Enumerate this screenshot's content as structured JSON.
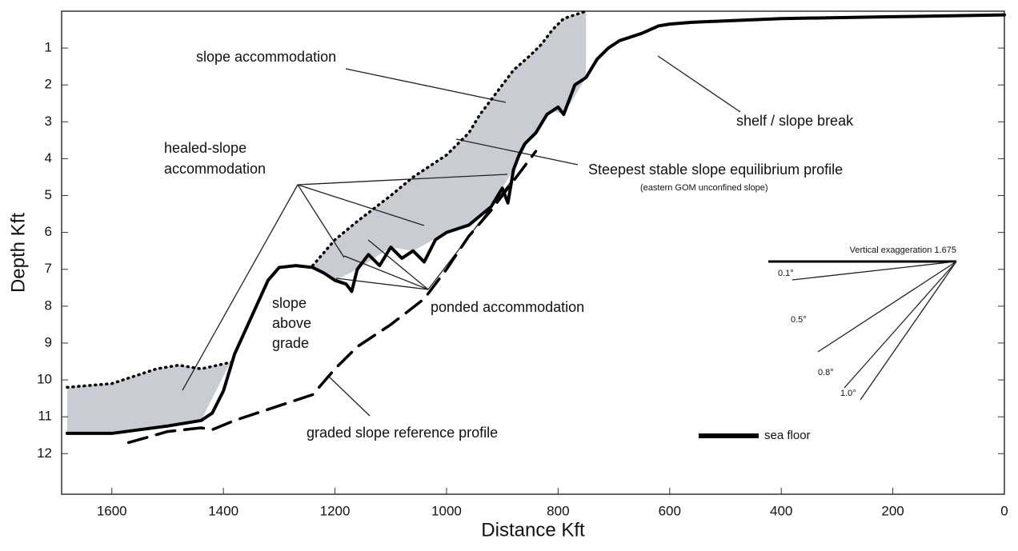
{
  "chart_data": {
    "type": "line",
    "xlabel": "Distance Kft",
    "ylabel": "Depth Kft",
    "xlim": [
      1690,
      0
    ],
    "ylim": [
      0,
      13.1
    ],
    "xticks": [
      1600,
      1400,
      1200,
      1000,
      800,
      600,
      400,
      200,
      0
    ],
    "yticks": [
      1,
      2,
      3,
      4,
      5,
      6,
      7,
      8,
      9,
      10,
      11,
      12
    ],
    "series": [
      {
        "name": "sea floor",
        "color": "#000000",
        "style": "solid",
        "x": [
          1680,
          1600,
          1500,
          1440,
          1420,
          1400,
          1380,
          1350,
          1320,
          1300,
          1270,
          1240,
          1220,
          1200,
          1180,
          1170,
          1160,
          1140,
          1120,
          1100,
          1080,
          1060,
          1040,
          1020,
          1000,
          960,
          920,
          900,
          890,
          880,
          870,
          860,
          840,
          820,
          800,
          790,
          770,
          750,
          730,
          710,
          690,
          650,
          620,
          600,
          560,
          400,
          200,
          0
        ],
        "values": [
          11.45,
          11.45,
          11.25,
          11.1,
          10.9,
          10.3,
          9.3,
          8.3,
          7.3,
          6.95,
          6.9,
          6.95,
          7.1,
          7.3,
          7.4,
          7.6,
          7.0,
          6.6,
          6.9,
          6.4,
          6.7,
          6.5,
          6.8,
          6.2,
          6.0,
          5.8,
          5.3,
          4.8,
          5.2,
          4.3,
          3.9,
          3.6,
          3.3,
          2.8,
          2.6,
          2.8,
          2.0,
          1.8,
          1.3,
          1.0,
          0.8,
          0.6,
          0.4,
          0.35,
          0.3,
          0.2,
          0.15,
          0.1
        ]
      },
      {
        "name": "Steepest stable slope equilibrium profile",
        "color": "#000000",
        "style": "dotted",
        "x": [
          1680,
          1600,
          1520,
          1480,
          1440,
          1380,
          1300,
          1240,
          1200,
          1160,
          1100,
          1060,
          1000,
          960,
          940,
          910,
          880,
          850,
          830,
          810,
          790,
          750
        ],
        "values": [
          10.2,
          10.1,
          9.7,
          9.6,
          9.7,
          9.5,
          null,
          6.9,
          6.2,
          5.7,
          5.0,
          4.5,
          3.9,
          3.3,
          2.8,
          2.2,
          1.6,
          1.2,
          0.9,
          0.5,
          0.2,
          0.0
        ]
      },
      {
        "name": "graded slope reference profile",
        "color": "#000000",
        "style": "dashed",
        "x": [
          1570,
          1500,
          1440,
          1420,
          1380,
          1300,
          1240,
          1200,
          1160,
          1100,
          1040,
          1000,
          960,
          920,
          880,
          860,
          840
        ],
        "values": [
          11.7,
          11.4,
          11.3,
          11.35,
          11.1,
          10.7,
          10.4,
          9.7,
          9.1,
          8.5,
          7.8,
          7.0,
          6.1,
          5.4,
          4.6,
          4.2,
          3.8
        ]
      }
    ],
    "annotations": [
      "slope accommodation",
      "shelf / slope break",
      "healed-slope",
      "accommodation",
      "(eastern GOM unconfined slope)",
      "slope",
      "above",
      "grade",
      "ponded accommodation"
    ],
    "inset": {
      "title": "Vertical exaggeration 1.675",
      "labels": [
        "0.1°",
        "0.5°",
        "0.8°",
        "1.0°"
      ]
    }
  }
}
